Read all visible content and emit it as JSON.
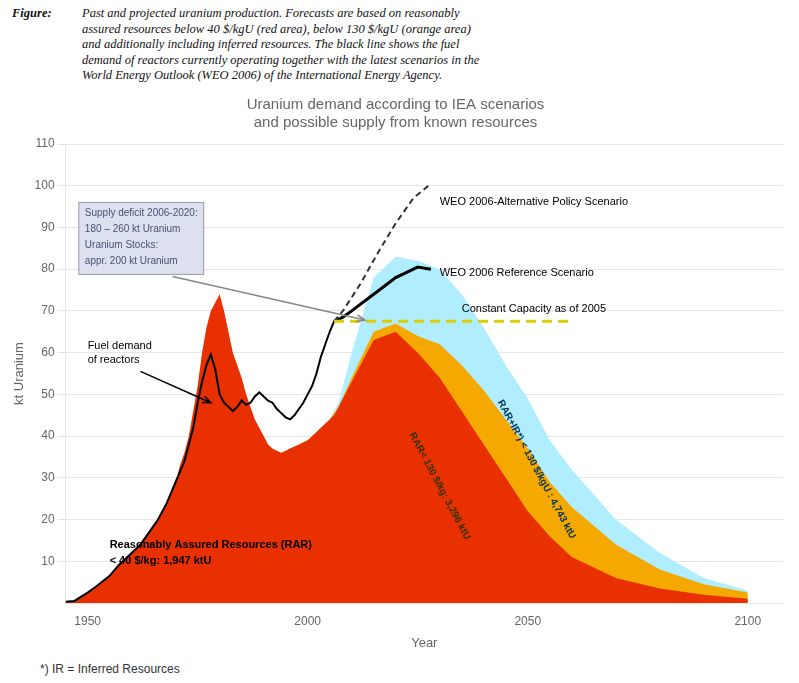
{
  "chart_data": {
    "type": "area",
    "title": [
      "Uranium demand according to IEA scenarios",
      "and possible supply from known resources"
    ],
    "xlabel": "Year",
    "ylabel": "kt Uranium",
    "xlim": [
      1945,
      2108
    ],
    "ylim": [
      0,
      110
    ],
    "xticks": [
      1950,
      2000,
      2050,
      2100
    ],
    "yticks": [
      10,
      20,
      30,
      40,
      50,
      60,
      70,
      80,
      90,
      100,
      110
    ],
    "grid": "y",
    "caption_label": "Figure:",
    "caption": [
      "Past and projected uranium production. Forecasts are based on reasonably",
      "assured resources below 40 $/kgU (red area), below 130 $/kgU (orange area)",
      "and additionally including inferred resources. The black line shows the fuel",
      "demand of reactors currently operating together with the latest scenarios in the",
      "World Energy Outlook (WEO 2006) of the International Energy Agency."
    ],
    "footnote": "*) IR = Inferred Resources",
    "annotations": [
      "Reasonably Assured Resources (RAR)",
      "< 40 $/kg: 1,947 ktU",
      "RAR< 130 $/kg: 3,296 ktU",
      "RAR+IR*) < 130 $/kgU : 4,743 ktU",
      "Fuel demand\nof reactors",
      "WEO 2006 Reference Scenario",
      "WEO 2006-Alternative Policy Scenario",
      "Constant Capacity as of 2005",
      "Supply deficit 2006-2020:\n180 – 260 kt Uranium\nUranium Stocks:\nappr. 200 kt Uranium"
    ],
    "series": [
      {
        "type": "area",
        "color": "#e83000",
        "x": [
          1945,
          1947,
          1950,
          1952,
          1955,
          1957,
          1960,
          1962,
          1964,
          1966,
          1968,
          1970,
          1971,
          1972,
          1973,
          1974,
          1975,
          1976,
          1977,
          1978,
          1979,
          1980,
          1981,
          1982,
          1983,
          1984,
          1985,
          1986,
          1987,
          1988,
          1989,
          1990,
          1991,
          1992,
          1993,
          1994,
          1995,
          1996,
          1997,
          1998,
          1999,
          2000,
          2001,
          2002,
          2003,
          2004,
          2005,
          2006,
          2007,
          2010,
          2015,
          2020,
          2025,
          2030,
          2035,
          2040,
          2045,
          2050,
          2055,
          2060,
          2070,
          2080,
          2090,
          2100
        ],
        "values": [
          0.3,
          0.5,
          2.5,
          4.0,
          6.5,
          9.0,
          12.0,
          14.0,
          17.0,
          20.0,
          24.0,
          29.0,
          33.0,
          36.0,
          40.0,
          46.0,
          52.0,
          60.0,
          66.0,
          70.0,
          72.0,
          74.0,
          70.0,
          65.0,
          60.0,
          57.0,
          54.0,
          50.0,
          47.0,
          44.0,
          42.0,
          40.0,
          38.0,
          37.0,
          36.5,
          36.0,
          36.5,
          37.0,
          37.5,
          38.0,
          38.5,
          39.0,
          40.0,
          41.0,
          42.0,
          43.0,
          44.0,
          45.0,
          47.0,
          53.0,
          63.0,
          65.0,
          60.0,
          54.0,
          46.0,
          38.0,
          30.0,
          22.0,
          16.0,
          11.0,
          6.0,
          3.5,
          2.0,
          1.0
        ]
      },
      {
        "type": "area",
        "color": "#f5a800",
        "x": [
          2005,
          2007,
          2010,
          2015,
          2020,
          2025,
          2030,
          2035,
          2040,
          2045,
          2050,
          2055,
          2060,
          2070,
          2080,
          2090,
          2100
        ],
        "values": [
          44,
          47,
          54,
          65,
          67,
          64,
          62,
          57,
          51,
          44,
          37,
          29,
          23,
          14,
          8,
          4.5,
          2.5
        ]
      },
      {
        "type": "area",
        "color": "#b0eeff",
        "x": [
          2005,
          2007,
          2010,
          2015,
          2020,
          2025,
          2030,
          2035,
          2040,
          2045,
          2050,
          2055,
          2060,
          2070,
          2080,
          2090,
          2100
        ],
        "values": [
          44,
          48,
          60,
          78,
          83,
          82,
          80,
          74,
          66,
          57,
          49,
          39,
          32,
          20,
          12,
          6.0,
          3.0
        ]
      },
      {
        "type": "line",
        "color": "#000000",
        "line_style": "solid",
        "x": [
          1945,
          1947,
          1950,
          1952,
          1955,
          1957,
          1960,
          1962,
          1964,
          1966,
          1968,
          1970,
          1972,
          1974,
          1975,
          1976,
          1977,
          1978,
          1979,
          1980,
          1981,
          1982,
          1983,
          1984,
          1985,
          1986,
          1987,
          1988,
          1989,
          1990,
          1991,
          1992,
          1993,
          1994,
          1995,
          1996,
          1997,
          1998,
          1999,
          2000,
          2001,
          2002,
          2003,
          2004,
          2005,
          2006
        ],
        "values": [
          0.3,
          0.5,
          2.5,
          4.0,
          6.5,
          9.0,
          12.0,
          14.0,
          17.0,
          20.0,
          24.0,
          29.0,
          34.0,
          42.0,
          48.0,
          53.0,
          57.0,
          59.5,
          56.0,
          50.0,
          48.0,
          47.0,
          46.0,
          47.0,
          48.5,
          47.5,
          48.0,
          49.5,
          50.5,
          49.5,
          48.5,
          48.0,
          46.5,
          45.5,
          44.5,
          44.0,
          45.0,
          46.5,
          48.0,
          50.0,
          52.0,
          55.0,
          59.0,
          62.0,
          65.0,
          67.5
        ]
      },
      {
        "type": "line",
        "color": "#000000",
        "line_style": "solid",
        "x": [
          2006,
          2008,
          2010,
          2015,
          2020,
          2025,
          2028
        ],
        "values": [
          67.5,
          68.5,
          70.0,
          74.0,
          78.0,
          80.5,
          80.0
        ]
      },
      {
        "type": "line",
        "color": "#333333",
        "line_style": "dashed",
        "x": [
          2006,
          2008,
          2012,
          2016,
          2020,
          2024,
          2028
        ],
        "values": [
          67.5,
          70.0,
          76.5,
          84.0,
          91.0,
          97.0,
          100.5
        ]
      },
      {
        "type": "line",
        "color": "#ddcc00",
        "line_style": "dashed",
        "x": [
          2006,
          2060
        ],
        "values": [
          67.5,
          67.5
        ]
      }
    ]
  }
}
